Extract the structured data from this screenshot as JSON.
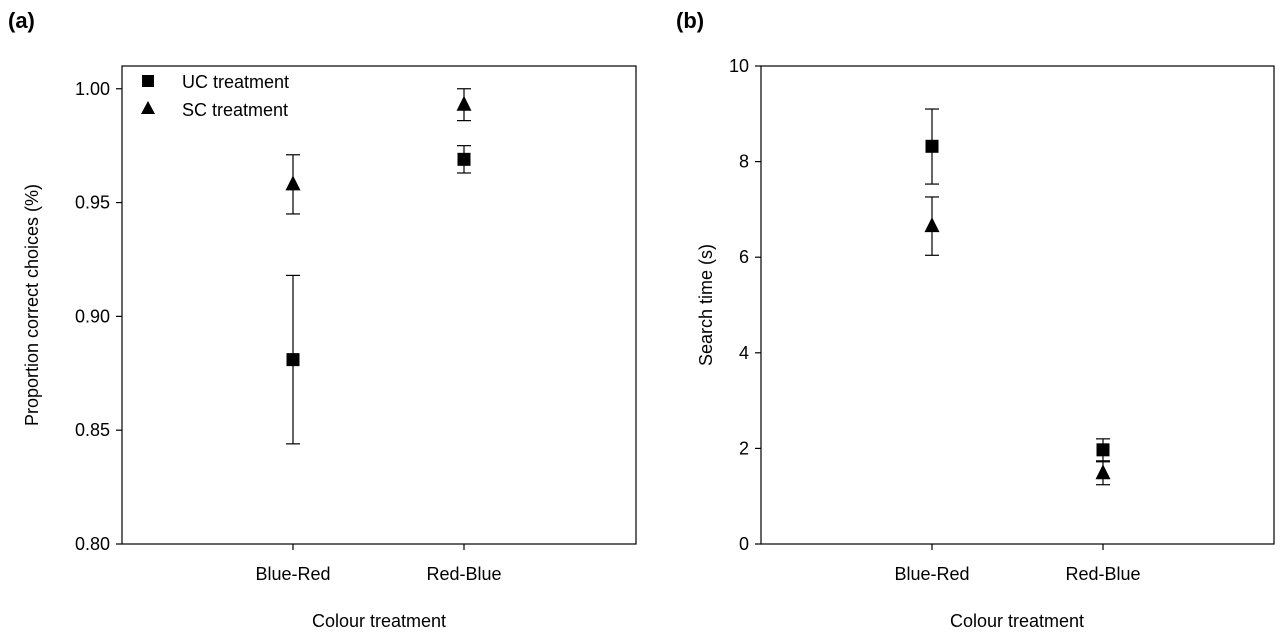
{
  "chart_data": [
    {
      "type": "scatter",
      "panel_label": "(a)",
      "xlabel": "Colour treatment",
      "ylabel": "Proportion correct choices (%)",
      "categories": [
        "Blue-Red",
        "Red-Blue"
      ],
      "ylim": [
        0.8,
        1.01
      ],
      "yticks": [
        "0.80",
        "0.85",
        "0.90",
        "0.95",
        "1.00"
      ],
      "grid": false,
      "legend": {
        "position": "top-left",
        "entries": [
          {
            "label": "UC treatment",
            "marker": "square"
          },
          {
            "label": "SC treatment",
            "marker": "triangle"
          }
        ]
      },
      "series": [
        {
          "name": "UC treatment",
          "marker": "square",
          "values": [
            0.881,
            0.969
          ],
          "err_low": [
            0.844,
            0.963
          ],
          "err_high": [
            0.918,
            0.975
          ]
        },
        {
          "name": "SC treatment",
          "marker": "triangle",
          "values": [
            0.958,
            0.993
          ],
          "err_low": [
            0.945,
            0.986
          ],
          "err_high": [
            0.971,
            1.0
          ]
        }
      ]
    },
    {
      "type": "scatter",
      "panel_label": "(b)",
      "xlabel": "Colour treatment",
      "ylabel": "Search time (s)",
      "categories": [
        "Blue-Red",
        "Red-Blue"
      ],
      "ylim": [
        0,
        10
      ],
      "yticks": [
        "0",
        "2",
        "4",
        "6",
        "8",
        "10"
      ],
      "grid": false,
      "series": [
        {
          "name": "UC treatment",
          "marker": "square",
          "values": [
            8.32,
            1.97
          ],
          "err_low": [
            7.53,
            1.74
          ],
          "err_high": [
            9.1,
            2.2
          ]
        },
        {
          "name": "SC treatment",
          "marker": "triangle",
          "values": [
            6.65,
            1.48
          ],
          "err_low": [
            6.04,
            1.24
          ],
          "err_high": [
            7.26,
            1.72
          ]
        }
      ]
    }
  ]
}
